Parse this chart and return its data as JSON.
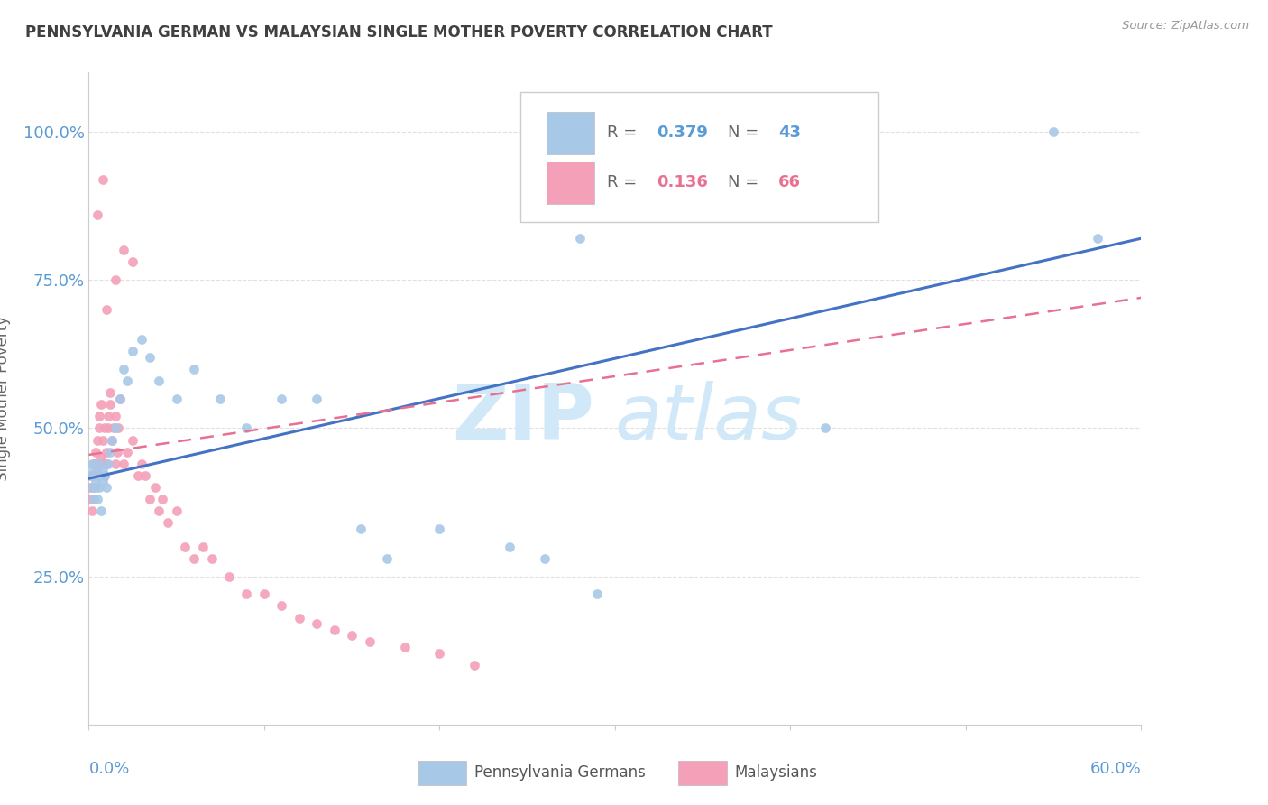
{
  "title": "PENNSYLVANIA GERMAN VS MALAYSIAN SINGLE MOTHER POVERTY CORRELATION CHART",
  "source": "Source: ZipAtlas.com",
  "ylabel": "Single Mother Poverty",
  "xlim": [
    0.0,
    0.6
  ],
  "ylim": [
    0.0,
    1.1
  ],
  "ytick_vals": [
    0.25,
    0.5,
    0.75,
    1.0
  ],
  "ytick_labels": [
    "25.0%",
    "50.0%",
    "75.0%",
    "100.0%"
  ],
  "blue_color": "#A8C8E8",
  "pink_color": "#F4A0B8",
  "blue_line_color": "#4472C4",
  "pink_line_color": "#E87090",
  "axis_color": "#5B9BD5",
  "title_color": "#404040",
  "grid_color": "#E0E0E0",
  "watermark_color": "#D0E8F8",
  "pa_german_x": [
    0.001,
    0.002,
    0.002,
    0.003,
    0.003,
    0.004,
    0.004,
    0.005,
    0.005,
    0.006,
    0.006,
    0.007,
    0.008,
    0.008,
    0.009,
    0.01,
    0.011,
    0.012,
    0.013,
    0.015,
    0.018,
    0.02,
    0.022,
    0.025,
    0.03,
    0.035,
    0.04,
    0.05,
    0.06,
    0.075,
    0.09,
    0.11,
    0.13,
    0.155,
    0.17,
    0.2,
    0.24,
    0.26,
    0.29,
    0.42,
    0.55,
    0.575,
    0.28
  ],
  "pa_german_y": [
    0.42,
    0.4,
    0.44,
    0.38,
    0.43,
    0.41,
    0.4,
    0.42,
    0.38,
    0.44,
    0.4,
    0.36,
    0.43,
    0.41,
    0.42,
    0.4,
    0.44,
    0.46,
    0.48,
    0.5,
    0.55,
    0.6,
    0.58,
    0.63,
    0.65,
    0.62,
    0.58,
    0.55,
    0.6,
    0.55,
    0.5,
    0.55,
    0.55,
    0.33,
    0.28,
    0.33,
    0.3,
    0.28,
    0.22,
    0.5,
    1.0,
    0.82,
    0.82
  ],
  "malaysian_x": [
    0.001,
    0.001,
    0.002,
    0.002,
    0.003,
    0.003,
    0.003,
    0.004,
    0.004,
    0.005,
    0.005,
    0.006,
    0.006,
    0.007,
    0.007,
    0.008,
    0.008,
    0.009,
    0.009,
    0.01,
    0.01,
    0.011,
    0.011,
    0.012,
    0.012,
    0.013,
    0.014,
    0.015,
    0.015,
    0.016,
    0.017,
    0.018,
    0.02,
    0.022,
    0.025,
    0.028,
    0.03,
    0.032,
    0.035,
    0.038,
    0.04,
    0.042,
    0.045,
    0.05,
    0.055,
    0.06,
    0.065,
    0.07,
    0.08,
    0.09,
    0.1,
    0.11,
    0.12,
    0.13,
    0.14,
    0.15,
    0.16,
    0.18,
    0.2,
    0.22,
    0.01,
    0.015,
    0.02,
    0.025,
    0.005,
    0.008
  ],
  "malaysian_y": [
    0.38,
    0.4,
    0.42,
    0.36,
    0.44,
    0.4,
    0.42,
    0.46,
    0.44,
    0.48,
    0.43,
    0.5,
    0.52,
    0.54,
    0.45,
    0.48,
    0.44,
    0.5,
    0.42,
    0.46,
    0.44,
    0.5,
    0.52,
    0.54,
    0.56,
    0.48,
    0.5,
    0.52,
    0.44,
    0.46,
    0.5,
    0.55,
    0.44,
    0.46,
    0.48,
    0.42,
    0.44,
    0.42,
    0.38,
    0.4,
    0.36,
    0.38,
    0.34,
    0.36,
    0.3,
    0.28,
    0.3,
    0.28,
    0.25,
    0.22,
    0.22,
    0.2,
    0.18,
    0.17,
    0.16,
    0.15,
    0.14,
    0.13,
    0.12,
    0.1,
    0.7,
    0.75,
    0.8,
    0.78,
    0.86,
    0.92
  ],
  "blue_line_x0": 0.0,
  "blue_line_y0": 0.415,
  "blue_line_x1": 0.6,
  "blue_line_y1": 0.82,
  "pink_line_x0": 0.0,
  "pink_line_y0": 0.455,
  "pink_line_x1": 0.6,
  "pink_line_y1": 0.72
}
